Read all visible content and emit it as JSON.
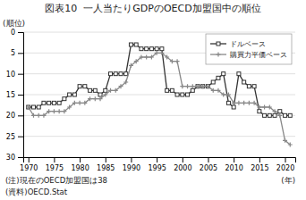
{
  "chart_data": {
    "type": "line",
    "title": "図表10  一人当たりGDPのOECD加盟国中の順位",
    "y_label": "(順位)",
    "x_label": "(年)",
    "annotations": [
      "(注)現在のOECD加盟国は38",
      "(資料)OECD.Stat"
    ],
    "x": [
      1970,
      1971,
      1972,
      1973,
      1974,
      1975,
      1976,
      1977,
      1978,
      1979,
      1980,
      1981,
      1982,
      1983,
      1984,
      1985,
      1986,
      1987,
      1988,
      1989,
      1990,
      1991,
      1992,
      1993,
      1994,
      1995,
      1996,
      1997,
      1998,
      1999,
      2000,
      2001,
      2002,
      2003,
      2004,
      2005,
      2006,
      2007,
      2008,
      2009,
      2010,
      2011,
      2012,
      2013,
      2014,
      2015,
      2016,
      2017,
      2018,
      2019,
      2020,
      2021
    ],
    "series": [
      {
        "name": "ドルベース",
        "color": "#333333",
        "marker": "square",
        "line_style": "solid",
        "values": [
          18,
          18,
          18,
          17,
          17,
          17,
          17,
          16,
          15,
          15,
          13,
          13,
          14,
          14,
          15,
          14,
          10,
          10,
          10,
          10,
          3,
          3,
          4,
          4,
          4,
          4,
          4,
          14,
          14,
          15,
          15,
          15,
          14,
          13,
          13,
          13,
          12,
          11,
          10,
          17,
          18,
          10,
          12,
          13,
          13,
          19,
          20,
          20,
          20,
          19,
          20,
          20
        ]
      },
      {
        "name": "購買力平価ベース",
        "color": "#888888",
        "marker": "plus",
        "line_style": "solid",
        "values": [
          18,
          20,
          20,
          20,
          19,
          19,
          19,
          19,
          18,
          17,
          17,
          17,
          16,
          16,
          16,
          15,
          14,
          14,
          13,
          12,
          8,
          7,
          6,
          6,
          6,
          5,
          5,
          6,
          7,
          7,
          13,
          13,
          13,
          13,
          13,
          13,
          14,
          14,
          15,
          15,
          17,
          17,
          17,
          17,
          17,
          18,
          18,
          18,
          19,
          20,
          26,
          27
        ]
      }
    ],
    "xlim": [
      1969,
      2022
    ],
    "xticks": [
      1970,
      1975,
      1980,
      1985,
      1990,
      1995,
      2000,
      2005,
      2010,
      2015,
      2020
    ],
    "ylim": [
      30,
      0
    ],
    "yticks": [
      0,
      5,
      10,
      15,
      20,
      25,
      30
    ],
    "grid": true,
    "legend": "upper right"
  }
}
